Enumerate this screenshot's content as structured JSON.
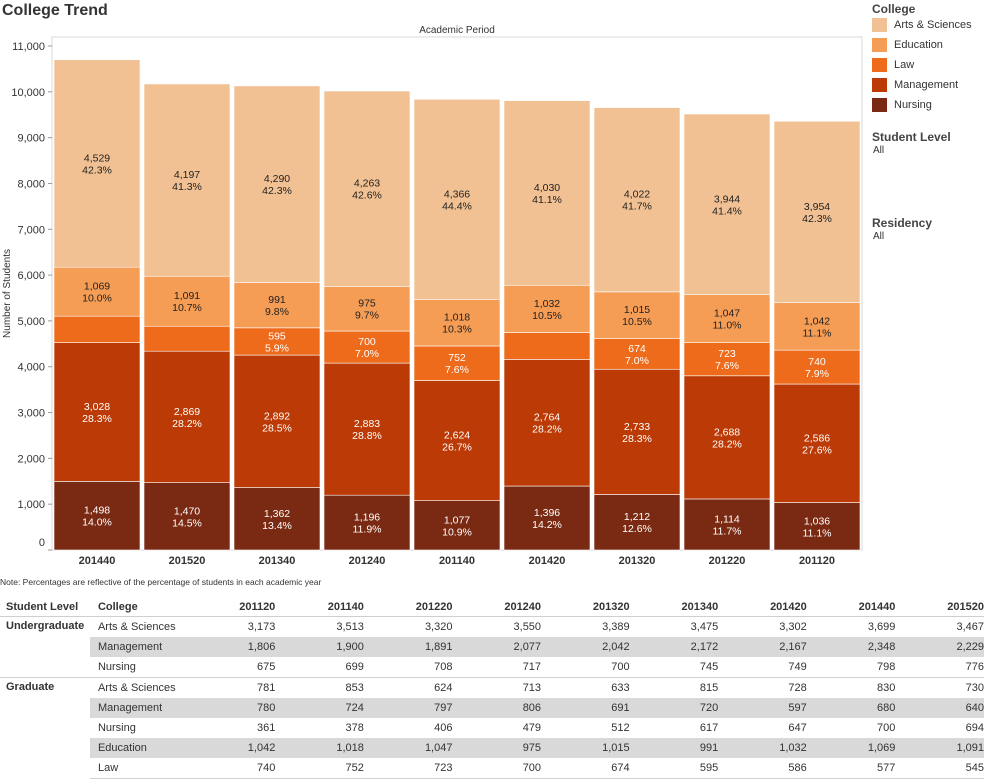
{
  "title": "College Trend",
  "note": "Note: Percentages are reflective of the percentage of students in each academic year",
  "legend": {
    "title": "College",
    "items": [
      {
        "label": "Arts & Sciences",
        "color": "#f1c193"
      },
      {
        "label": "Education",
        "color": "#f59c55"
      },
      {
        "label": "Law",
        "color": "#ed6b1b"
      },
      {
        "label": "Management",
        "color": "#bc3a05"
      },
      {
        "label": "Nursing",
        "color": "#7a2a12"
      }
    ]
  },
  "filters": [
    {
      "title": "Student Level",
      "value": "All"
    },
    {
      "title": "Residency",
      "value": "All"
    }
  ],
  "chart_data": {
    "type": "bar",
    "stacked": true,
    "title": "College Trend",
    "xlabel": "Academic Period",
    "ylabel": "Number of Students",
    "ylim": [
      0,
      11000
    ],
    "yticks": [
      0,
      1000,
      2000,
      3000,
      4000,
      5000,
      6000,
      7000,
      8000,
      9000,
      10000,
      11000
    ],
    "ytick_labels": [
      "0",
      "1,000",
      "2,000",
      "3,000",
      "4,000",
      "5,000",
      "6,000",
      "7,000",
      "8,000",
      "9,000",
      "10,000",
      "11,000"
    ],
    "grid": false,
    "legend_position": "right",
    "categories": [
      "201440",
      "201520",
      "201340",
      "201240",
      "201140",
      "201420",
      "201320",
      "201220",
      "201120"
    ],
    "series": [
      {
        "name": "Nursing",
        "color": "#7a2a12",
        "label_color": "#ffffff",
        "values": [
          1498,
          1470,
          1362,
          1196,
          1077,
          1396,
          1212,
          1114,
          1036
        ],
        "labels": [
          "1,498",
          "1,470",
          "1,362",
          "1,196",
          "1,077",
          "1,396",
          "1,212",
          "1,114",
          "1,036"
        ],
        "pct": [
          "14.0%",
          "14.5%",
          "13.4%",
          "11.9%",
          "10.9%",
          "14.2%",
          "12.6%",
          "11.7%",
          "11.1%"
        ]
      },
      {
        "name": "Management",
        "color": "#bc3a05",
        "label_color": "#ffffff",
        "values": [
          3028,
          2869,
          2892,
          2883,
          2624,
          2764,
          2733,
          2688,
          2586
        ],
        "labels": [
          "3,028",
          "2,869",
          "2,892",
          "2,883",
          "2,624",
          "2,764",
          "2,733",
          "2,688",
          "2,586"
        ],
        "pct": [
          "28.3%",
          "28.2%",
          "28.5%",
          "28.8%",
          "26.7%",
          "28.2%",
          "28.3%",
          "28.2%",
          "27.6%"
        ]
      },
      {
        "name": "Law",
        "color": "#ed6b1b",
        "label_color": "#ffffff",
        "values": [
          577,
          545,
          595,
          700,
          752,
          586,
          674,
          723,
          740
        ],
        "labels": [
          "",
          "",
          "595",
          "700",
          "752",
          "",
          "674",
          "723",
          "740"
        ],
        "pct": [
          "",
          "",
          "5.9%",
          "7.0%",
          "7.6%",
          "",
          "7.0%",
          "7.6%",
          "7.9%"
        ]
      },
      {
        "name": "Education",
        "color": "#f59c55",
        "label_color": "#222222",
        "values": [
          1069,
          1091,
          991,
          975,
          1018,
          1032,
          1015,
          1047,
          1042
        ],
        "labels": [
          "1,069",
          "1,091",
          "991",
          "975",
          "1,018",
          "1,032",
          "1,015",
          "1,047",
          "1,042"
        ],
        "pct": [
          "10.0%",
          "10.7%",
          "9.8%",
          "9.7%",
          "10.3%",
          "10.5%",
          "10.5%",
          "11.0%",
          "11.1%"
        ]
      },
      {
        "name": "Arts & Sciences",
        "color": "#f1c193",
        "label_color": "#222222",
        "values": [
          4529,
          4197,
          4290,
          4263,
          4366,
          4030,
          4022,
          3944,
          3954
        ],
        "labels": [
          "4,529",
          "4,197",
          "4,290",
          "4,263",
          "4,366",
          "4,030",
          "4,022",
          "3,944",
          "3,954"
        ],
        "pct": [
          "42.3%",
          "41.3%",
          "42.3%",
          "42.6%",
          "44.4%",
          "41.1%",
          "41.7%",
          "41.4%",
          "42.3%"
        ]
      }
    ]
  },
  "table": {
    "headers": [
      "Student Level",
      "College",
      "201120",
      "201140",
      "201220",
      "201240",
      "201320",
      "201340",
      "201420",
      "201440",
      "201520"
    ],
    "groups": [
      {
        "level": "Undergraduate",
        "rows": [
          {
            "college": "Arts & Sciences",
            "values": [
              "3,173",
              "3,513",
              "3,320",
              "3,550",
              "3,389",
              "3,475",
              "3,302",
              "3,699",
              "3,467"
            ]
          },
          {
            "college": "Management",
            "values": [
              "1,806",
              "1,900",
              "1,891",
              "2,077",
              "2,042",
              "2,172",
              "2,167",
              "2,348",
              "2,229"
            ]
          },
          {
            "college": "Nursing",
            "values": [
              "675",
              "699",
              "708",
              "717",
              "700",
              "745",
              "749",
              "798",
              "776"
            ]
          }
        ]
      },
      {
        "level": "Graduate",
        "rows": [
          {
            "college": "Arts & Sciences",
            "values": [
              "781",
              "853",
              "624",
              "713",
              "633",
              "815",
              "728",
              "830",
              "730"
            ]
          },
          {
            "college": "Management",
            "values": [
              "780",
              "724",
              "797",
              "806",
              "691",
              "720",
              "597",
              "680",
              "640"
            ]
          },
          {
            "college": "Nursing",
            "values": [
              "361",
              "378",
              "406",
              "479",
              "512",
              "617",
              "647",
              "700",
              "694"
            ]
          },
          {
            "college": "Education",
            "values": [
              "1,042",
              "1,018",
              "1,047",
              "975",
              "1,015",
              "991",
              "1,032",
              "1,069",
              "1,091"
            ]
          },
          {
            "college": "Law",
            "values": [
              "740",
              "752",
              "723",
              "700",
              "674",
              "595",
              "586",
              "577",
              "545"
            ]
          }
        ]
      }
    ]
  }
}
